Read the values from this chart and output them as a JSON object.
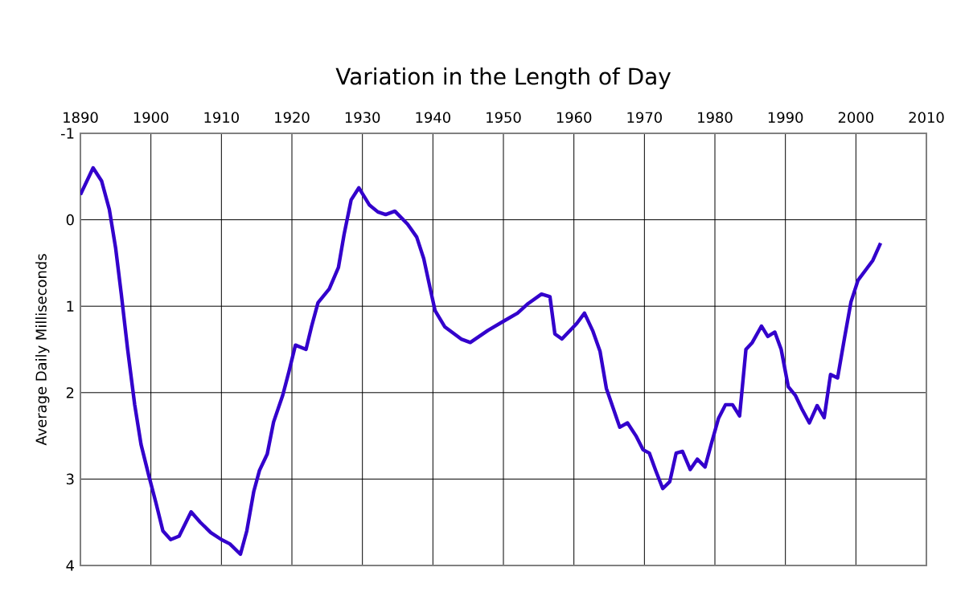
{
  "chart_data": {
    "type": "line",
    "title": "Variation in the Length of Day",
    "ylabel": "Average Daily Milliseconds",
    "x": [
      1890,
      1891.8,
      1893,
      1894.1,
      1895,
      1895.8,
      1896.7,
      1897.7,
      1898.6,
      1899.7,
      1900.7,
      1901.7,
      1902.8,
      1904,
      1905.7,
      1907,
      1908.5,
      1910,
      1911.2,
      1912.7,
      1913.6,
      1914.6,
      1915.4,
      1916.5,
      1917.4,
      1918.7,
      1919.6,
      1920.5,
      1922,
      1922.8,
      1923.7,
      1925.3,
      1926.6,
      1927.4,
      1928.4,
      1929.5,
      1931,
      1932.2,
      1933.3,
      1934.6,
      1936.4,
      1937.7,
      1938.7,
      1939.6,
      1940.3,
      1941.7,
      1944,
      1945.3,
      1947.8,
      1950.1,
      1952,
      1953.5,
      1955.4,
      1956.6,
      1957.3,
      1958.3,
      1960.4,
      1961.5,
      1962.7,
      1963.7,
      1964.6,
      1966.5,
      1967.6,
      1968.8,
      1969.8,
      1970.7,
      1971.6,
      1972.6,
      1973.6,
      1974.5,
      1975.4,
      1976.5,
      1977.5,
      1978.6,
      1979.5,
      1980.5,
      1981.5,
      1982.5,
      1983.5,
      1984.4,
      1985.3,
      1986.6,
      1987.5,
      1988.5,
      1989.4,
      1990.4,
      1991.4,
      1992.4,
      1993.4,
      1994.5,
      1995.5,
      1996.4,
      1997.4,
      1998.4,
      1999.3,
      2000.3,
      2001.4,
      2002.4,
      2003.5
    ],
    "series": [
      {
        "color": "#3300cc",
        "values": [
          -0.29,
          -0.6,
          -0.45,
          -0.12,
          0.33,
          0.86,
          1.5,
          2.14,
          2.6,
          2.96,
          3.27,
          3.6,
          3.7,
          3.66,
          3.38,
          3.5,
          3.62,
          3.7,
          3.75,
          3.87,
          3.6,
          3.14,
          2.9,
          2.71,
          2.34,
          2.03,
          1.75,
          1.45,
          1.5,
          1.23,
          0.96,
          0.8,
          0.55,
          0.17,
          -0.23,
          -0.37,
          -0.17,
          -0.09,
          -0.06,
          -0.1,
          0.05,
          0.2,
          0.45,
          0.79,
          1.05,
          1.24,
          1.38,
          1.42,
          1.28,
          1.17,
          1.08,
          0.97,
          0.86,
          0.89,
          1.32,
          1.38,
          1.2,
          1.08,
          1.29,
          1.52,
          1.95,
          2.4,
          2.35,
          2.5,
          2.66,
          2.7,
          2.9,
          3.11,
          3.03,
          2.7,
          2.68,
          2.89,
          2.77,
          2.86,
          2.59,
          2.3,
          2.14,
          2.14,
          2.27,
          1.5,
          1.42,
          1.23,
          1.35,
          1.3,
          1.5,
          1.93,
          2.03,
          2.2,
          2.35,
          2.15,
          2.29,
          1.79,
          1.83,
          1.36,
          0.95,
          0.7,
          0.58,
          0.47,
          0.27
        ]
      }
    ],
    "xlim": [
      1890,
      2010
    ],
    "xticks": [
      1890,
      1900,
      1910,
      1920,
      1930,
      1940,
      1950,
      1960,
      1970,
      1980,
      1990,
      2000,
      2010
    ],
    "ylim": [
      4,
      -1
    ],
    "yticks": [
      -1,
      0,
      1,
      2,
      3,
      4
    ],
    "grid": true,
    "marker": "none",
    "line_style": "solid"
  }
}
